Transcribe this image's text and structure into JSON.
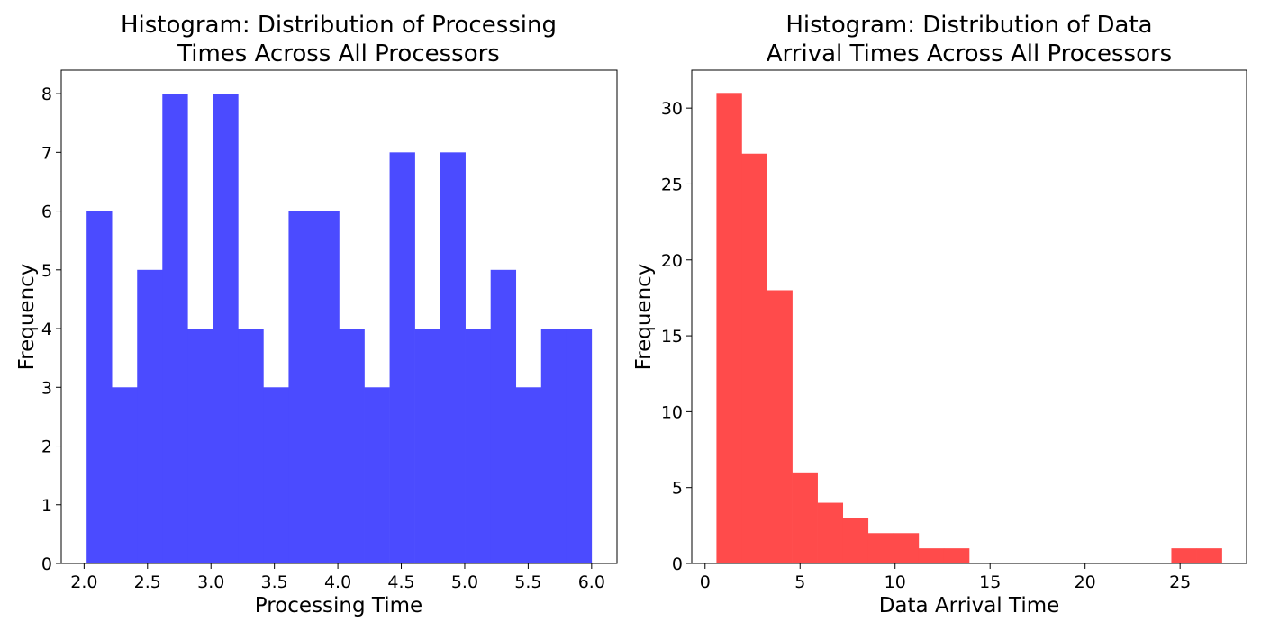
{
  "chart_data": [
    {
      "type": "bar",
      "title_lines": [
        "Histogram: Distribution of Processing",
        "Times Across All Processors"
      ],
      "xlabel": "Processing Time",
      "ylabel": "Frequency",
      "color": "#4b4bff",
      "bin_start": 2.02,
      "bin_width": 0.199,
      "counts": [
        6,
        3,
        5,
        8,
        4,
        8,
        4,
        3,
        6,
        6,
        4,
        3,
        7,
        4,
        7,
        4,
        5,
        3,
        4,
        4
      ],
      "xlim": [
        1.82,
        6.2
      ],
      "ylim": [
        0,
        8.4
      ],
      "xticks": [
        2.0,
        2.5,
        3.0,
        3.5,
        4.0,
        4.5,
        5.0,
        5.5,
        6.0
      ],
      "xtick_labels": [
        "2.0",
        "2.5",
        "3.0",
        "3.5",
        "4.0",
        "4.5",
        "5.0",
        "5.5",
        "6.0"
      ],
      "yticks": [
        0,
        1,
        2,
        3,
        4,
        5,
        6,
        7,
        8
      ],
      "ytick_labels": [
        "0",
        "1",
        "2",
        "3",
        "4",
        "5",
        "6",
        "7",
        "8"
      ]
    },
    {
      "type": "bar",
      "title_lines": [
        "Histogram: Distribution of Data",
        "Arrival Times Across All Processors"
      ],
      "xlabel": "Data Arrival Time",
      "ylabel": "Frequency",
      "color": "#ff4b4b",
      "bin_start": 0.6,
      "bin_width": 1.33,
      "counts": [
        31,
        27,
        18,
        6,
        4,
        3,
        2,
        2,
        1,
        1,
        0,
        0,
        0,
        0,
        0,
        0,
        0,
        0,
        1,
        1
      ],
      "xlim": [
        -0.7,
        28.5
      ],
      "ylim": [
        0,
        32.5
      ],
      "xticks": [
        0,
        5,
        10,
        15,
        20,
        25
      ],
      "xtick_labels": [
        "0",
        "5",
        "10",
        "15",
        "20",
        "25"
      ],
      "yticks": [
        0,
        5,
        10,
        15,
        20,
        25,
        30
      ],
      "ytick_labels": [
        "0",
        "5",
        "10",
        "15",
        "20",
        "25",
        "30"
      ]
    }
  ]
}
